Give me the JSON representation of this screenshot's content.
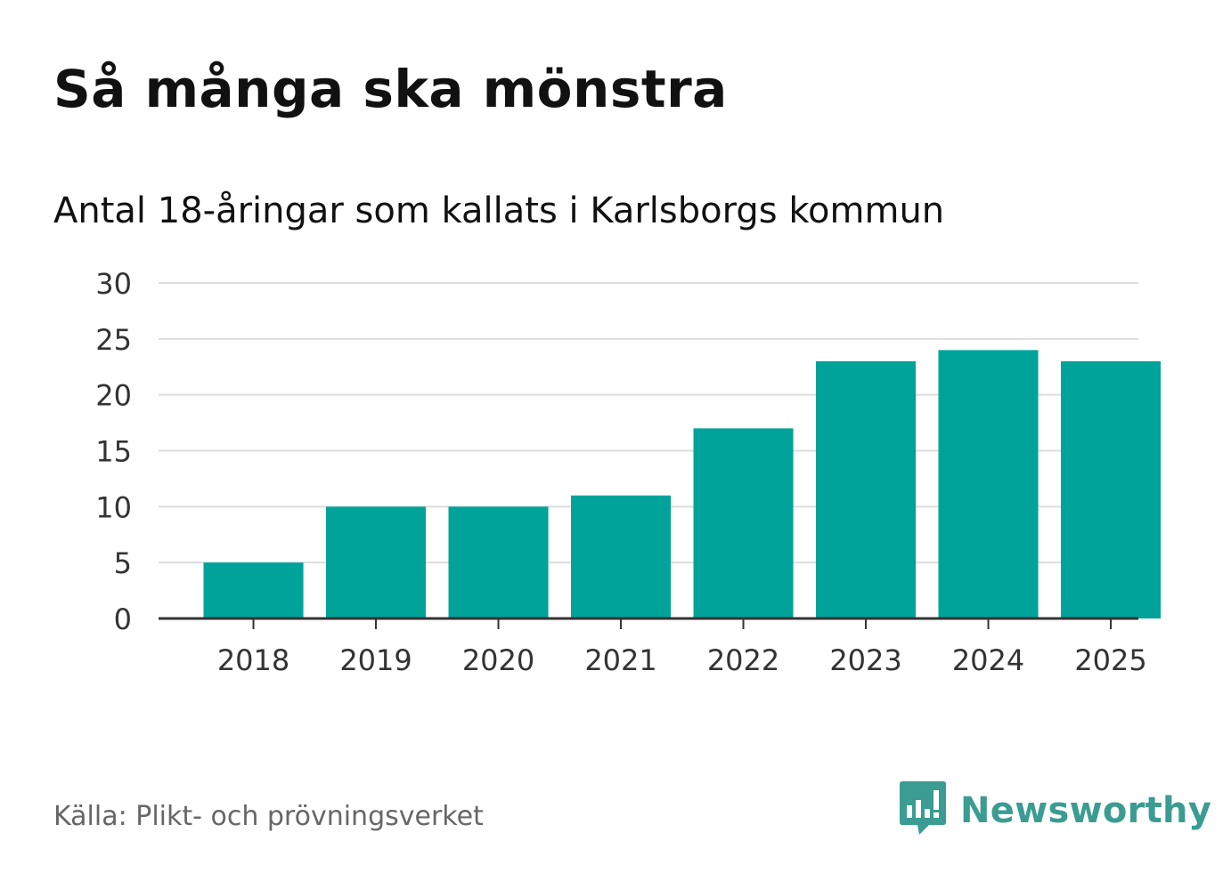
{
  "title": "Så många ska mönstra",
  "subtitle": "Antal 18-åringar som kallats i Karlsborgs kommun",
  "source": "Källa: Plikt- och prövningsverket",
  "brand": {
    "name": "Newsworthy",
    "icon": "newsworthy-logo-icon",
    "color": "#3a9c92"
  },
  "colors": {
    "bar": "#00a39a",
    "grid": "#dddddd",
    "axis": "#333333",
    "tick_text": "#333333"
  },
  "chart_data": {
    "type": "bar",
    "title": "Så många ska mönstra",
    "subtitle": "Antal 18-åringar som kallats i Karlsborgs kommun",
    "xlabel": "",
    "ylabel": "",
    "categories": [
      "2018",
      "2019",
      "2020",
      "2021",
      "2022",
      "2023",
      "2024",
      "2025"
    ],
    "values": [
      5,
      10,
      10,
      11,
      17,
      23,
      24,
      23
    ],
    "ylim": [
      0,
      30
    ],
    "yticks": [
      0,
      5,
      10,
      15,
      20,
      25,
      30
    ],
    "grid": true,
    "legend": "none"
  }
}
